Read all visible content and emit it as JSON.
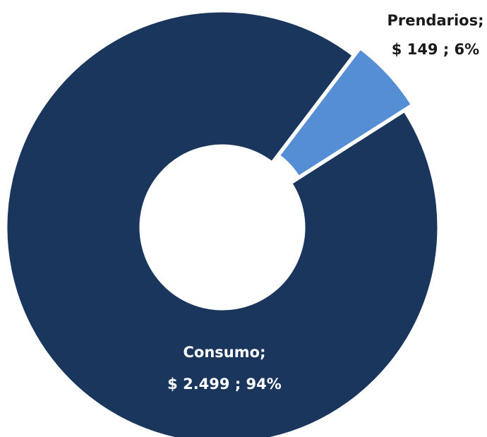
{
  "chart_data": {
    "type": "donut",
    "categories": [
      "Consumo;",
      "Prendarios;"
    ],
    "values": [
      2499,
      149
    ],
    "value_labels": [
      "$ 2.499 ; 94%",
      "$ 149 ; 6%"
    ],
    "colors": [
      "#1a365d",
      "#558ed5"
    ]
  }
}
